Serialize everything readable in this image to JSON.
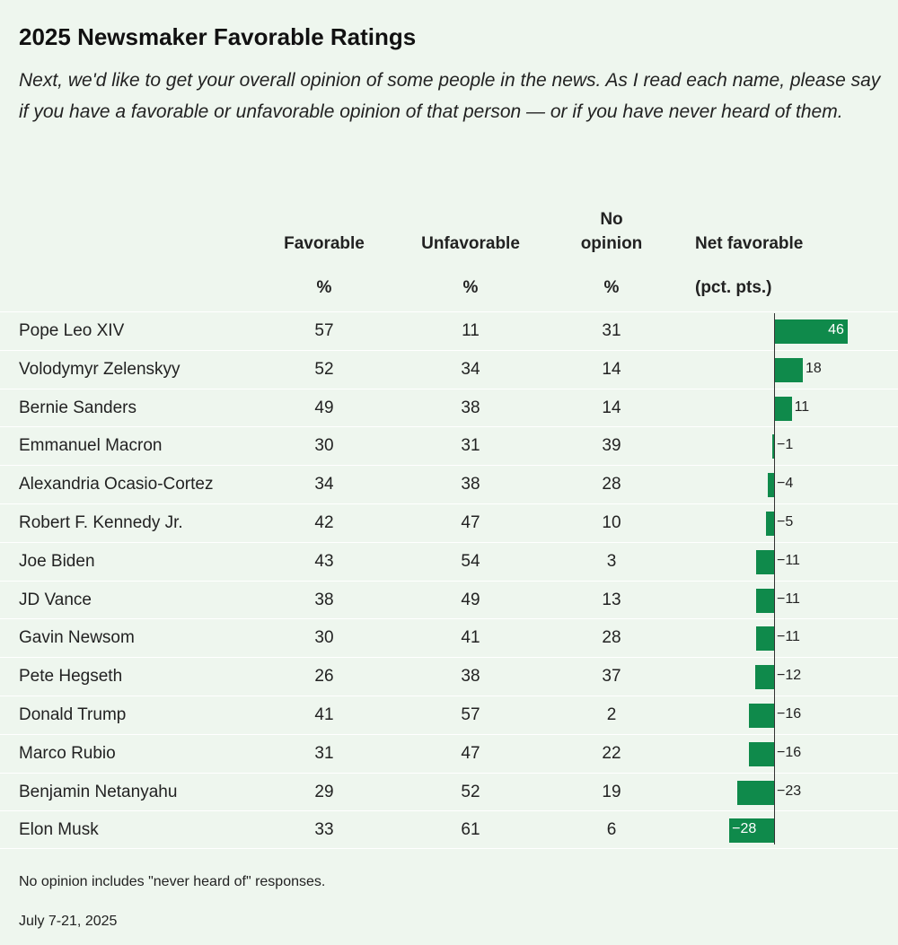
{
  "title": "2025 Newsmaker Favorable Ratings",
  "subtitle": "Next, we'd like to get your overall opinion of some people in the news. As I read each name, please say if you have a favorable or unfavorable opinion of that person — or if you have never heard of them.",
  "columns": {
    "favorable": "Favorable",
    "unfavorable": "Unfavorable",
    "no_opinion_line1": "No",
    "no_opinion_line2": "opinion",
    "net": "Net favorable",
    "pct": "%",
    "net_unit": "(pct. pts.)"
  },
  "note": "No opinion includes \"never heard of\" responses.",
  "date": "July 7-21, 2025",
  "colors": {
    "bar": "#0f8a4b",
    "background": "#eef6ee"
  },
  "chart_data": {
    "type": "table",
    "title": "2025 Newsmaker Favorable Ratings",
    "rows": [
      {
        "name": "Pope Leo XIV",
        "favorable": "57",
        "unfavorable": "11",
        "no_opinion": "31",
        "net": 46,
        "net_label": "46"
      },
      {
        "name": "Volodymyr Zelenskyy",
        "favorable": "52",
        "unfavorable": "34",
        "no_opinion": "14",
        "net": 18,
        "net_label": "18"
      },
      {
        "name": "Bernie Sanders",
        "favorable": "49",
        "unfavorable": "38",
        "no_opinion": "14",
        "net": 11,
        "net_label": "11"
      },
      {
        "name": "Emmanuel Macron",
        "favorable": "30",
        "unfavorable": "31",
        "no_opinion": "39",
        "net": -1,
        "net_label": "−1"
      },
      {
        "name": "Alexandria Ocasio-Cortez",
        "favorable": "34",
        "unfavorable": "38",
        "no_opinion": "28",
        "net": -4,
        "net_label": "−4"
      },
      {
        "name": "Robert F. Kennedy Jr.",
        "favorable": "42",
        "unfavorable": "47",
        "no_opinion": "10",
        "net": -5,
        "net_label": "−5"
      },
      {
        "name": "Joe Biden",
        "favorable": "43",
        "unfavorable": "54",
        "no_opinion": "3",
        "net": -11,
        "net_label": "−11"
      },
      {
        "name": "JD Vance",
        "favorable": "38",
        "unfavorable": "49",
        "no_opinion": "13",
        "net": -11,
        "net_label": "−11"
      },
      {
        "name": "Gavin Newsom",
        "favorable": "30",
        "unfavorable": "41",
        "no_opinion": "28",
        "net": -11,
        "net_label": "−11"
      },
      {
        "name": "Pete Hegseth",
        "favorable": "26",
        "unfavorable": "38",
        "no_opinion": "37",
        "net": -12,
        "net_label": "−12"
      },
      {
        "name": "Donald Trump",
        "favorable": "41",
        "unfavorable": "57",
        "no_opinion": "2",
        "net": -16,
        "net_label": "−16"
      },
      {
        "name": "Marco Rubio",
        "favorable": "31",
        "unfavorable": "47",
        "no_opinion": "22",
        "net": -16,
        "net_label": "−16"
      },
      {
        "name": "Benjamin Netanyahu",
        "favorable": "29",
        "unfavorable": "52",
        "no_opinion": "19",
        "net": -23,
        "net_label": "−23"
      },
      {
        "name": "Elon Musk",
        "favorable": "33",
        "unfavorable": "61",
        "no_opinion": "6",
        "net": -28,
        "net_label": "−28"
      }
    ]
  }
}
